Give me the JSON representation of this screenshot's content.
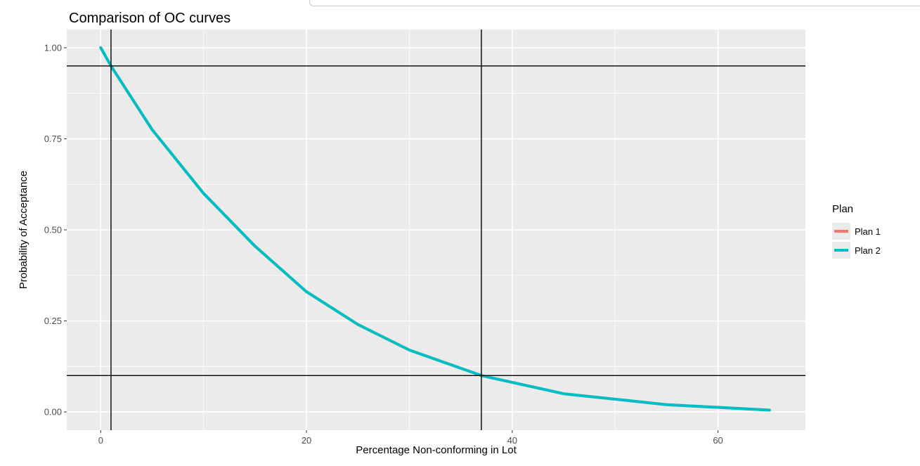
{
  "chart_data": {
    "type": "line",
    "title": "Comparison of OC curves",
    "xlabel": "Percentage Non-conforming in Lot",
    "ylabel": "Probability of Acceptance",
    "xlim": [
      -3.3,
      68.5
    ],
    "ylim": [
      -0.05,
      1.05
    ],
    "x_ticks": [
      0,
      20,
      40,
      60
    ],
    "x_tick_labels": [
      "0",
      "20",
      "40",
      "60"
    ],
    "y_ticks": [
      0,
      0.25,
      0.5,
      0.75,
      1
    ],
    "y_tick_labels": [
      "0.00",
      "0.25",
      "0.50",
      "0.75",
      "1.00"
    ],
    "grid": true,
    "legend": {
      "title": "Plan",
      "position": "right",
      "entries": [
        {
          "name": "Plan 1",
          "color": "#F8766D"
        },
        {
          "name": "Plan 2",
          "color": "#00BFC4"
        }
      ]
    },
    "series": [
      {
        "name": "Plan 1",
        "color": "#F8766D",
        "x": [
          0,
          1,
          5,
          10,
          15,
          20,
          25,
          30,
          37,
          45,
          55,
          65
        ],
        "y": [
          1.0,
          0.95,
          0.775,
          0.6,
          0.455,
          0.33,
          0.24,
          0.17,
          0.1,
          0.05,
          0.02,
          0.005
        ]
      },
      {
        "name": "Plan 2",
        "color": "#00BFC4",
        "x": [
          0,
          1,
          5,
          10,
          15,
          20,
          25,
          30,
          37,
          45,
          55,
          65
        ],
        "y": [
          1.0,
          0.95,
          0.775,
          0.6,
          0.455,
          0.33,
          0.24,
          0.17,
          0.1,
          0.05,
          0.02,
          0.005
        ]
      }
    ],
    "reference_lines": {
      "vertical_x": [
        1,
        37
      ],
      "horizontal_y": [
        0.95,
        0.1
      ],
      "color": "#000000"
    }
  }
}
